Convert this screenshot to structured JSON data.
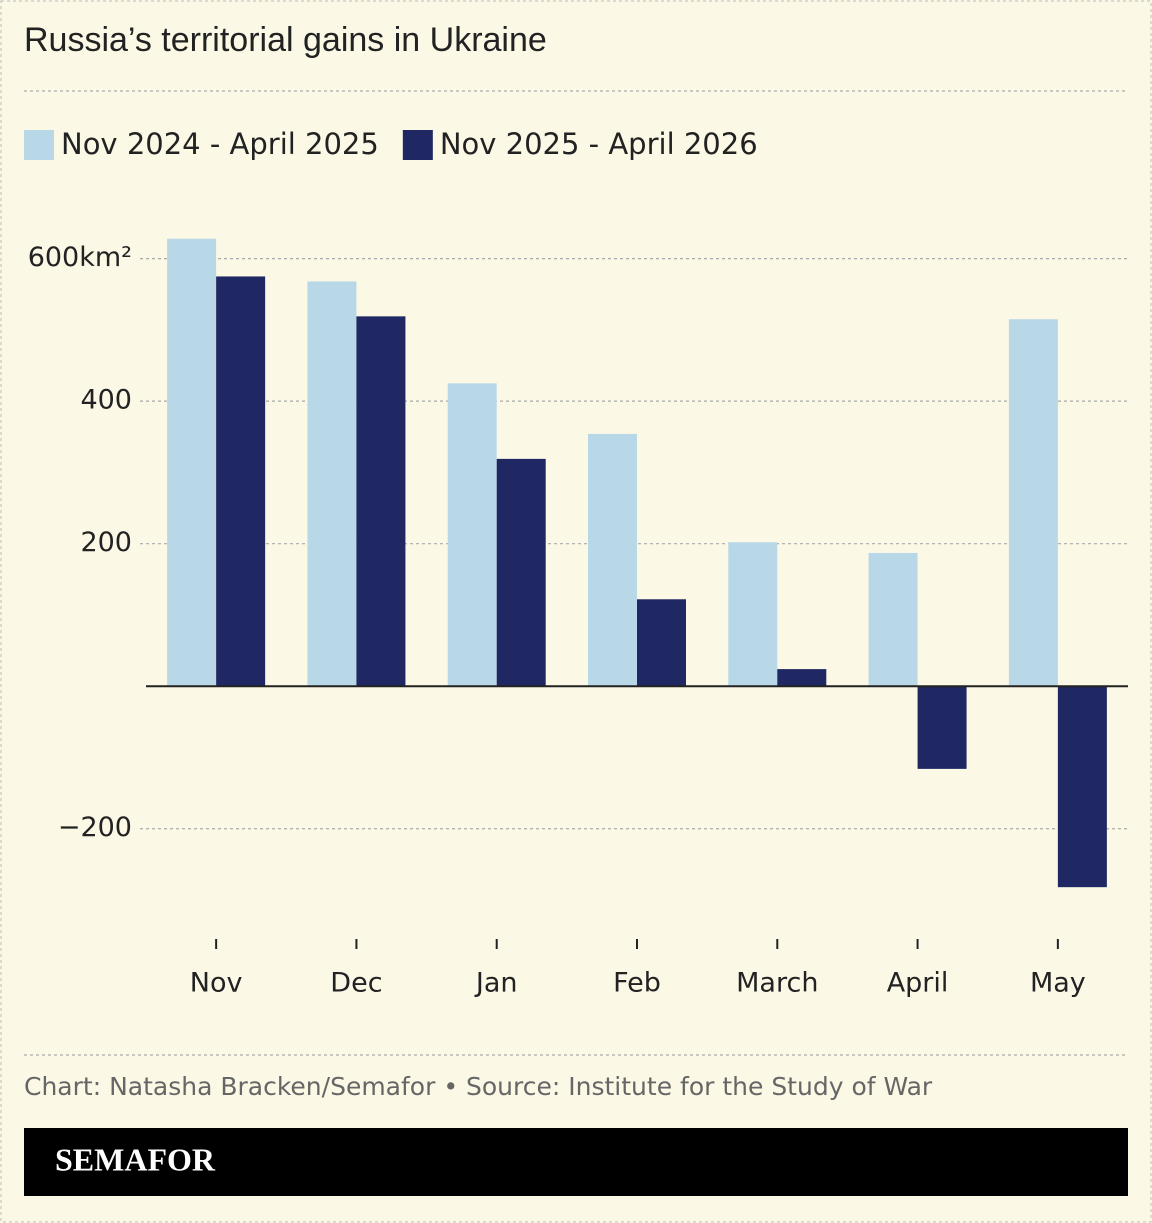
{
  "chart_data": {
    "type": "bar",
    "title": "Russia’s territorial gains in Ukraine",
    "categories": [
      "Nov",
      "Dec",
      "Jan",
      "Feb",
      "March",
      "April",
      "May"
    ],
    "series": [
      {
        "name": "Nov 2024 - April 2025",
        "color": "#b8d8e8",
        "values": [
          628,
          568,
          425,
          354,
          202,
          187,
          515
        ]
      },
      {
        "name": "Nov 2025 - April 2026",
        "color": "#1f2863",
        "values": [
          575,
          519,
          319,
          122,
          24,
          -116,
          -282
        ]
      }
    ],
    "ylim": [
      -300,
      650
    ],
    "yticks": [
      {
        "value": 600,
        "label": "600km²"
      },
      400,
      200,
      {
        "value": -200,
        "label": "−200"
      }
    ],
    "grid": true,
    "legend": "top",
    "source": "Chart: Natasha Bracken/Semafor • Source: Institute for the Study of War",
    "logo": "SEMAFOR"
  }
}
